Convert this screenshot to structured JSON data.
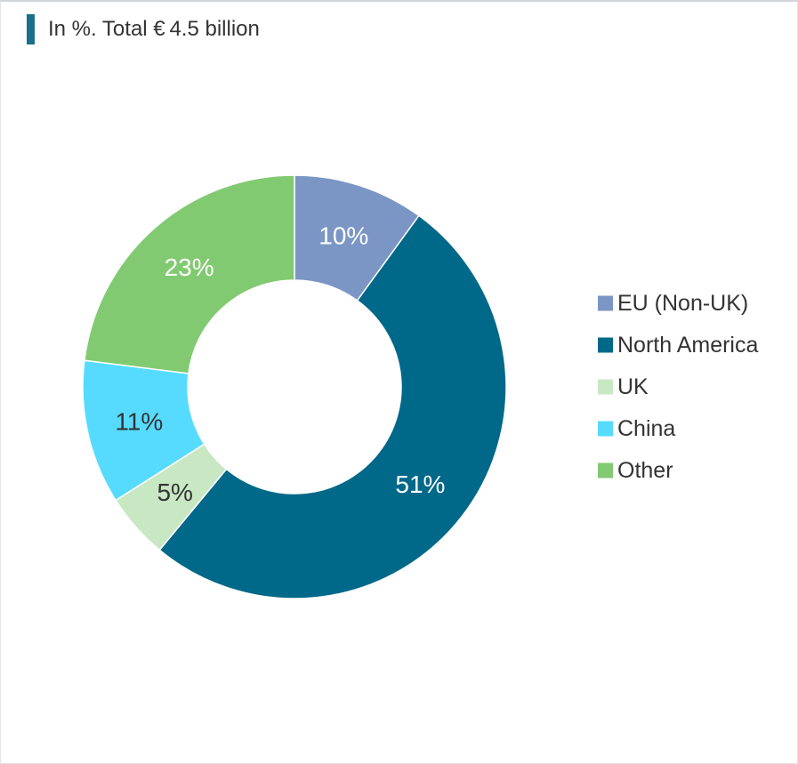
{
  "header": {
    "subtitle": "In %. Total € 4.5 billion"
  },
  "colors": {
    "accent_bar": "#1a6f8a",
    "label_light": "#ffffff",
    "label_dark": "#333333"
  },
  "chart_data": {
    "type": "pie",
    "donut": true,
    "start_angle_deg": 0,
    "direction": "clockwise",
    "legend_position": "right",
    "slices": [
      {
        "label": "EU (Non-UK)",
        "value": 10,
        "display": "10%",
        "color": "#7b96c4",
        "label_color": "#ffffff"
      },
      {
        "label": "North America",
        "value": 51,
        "display": "51%",
        "color": "#006889",
        "label_color": "#ffffff"
      },
      {
        "label": "UK",
        "value": 5,
        "display": "5%",
        "color": "#c8e8c4",
        "label_color": "#333333"
      },
      {
        "label": "China",
        "value": 11,
        "display": "11%",
        "color": "#56dbff",
        "label_color": "#333333"
      },
      {
        "label": "Other",
        "value": 23,
        "display": "23%",
        "color": "#82ca72",
        "label_color": "#ffffff"
      }
    ]
  }
}
